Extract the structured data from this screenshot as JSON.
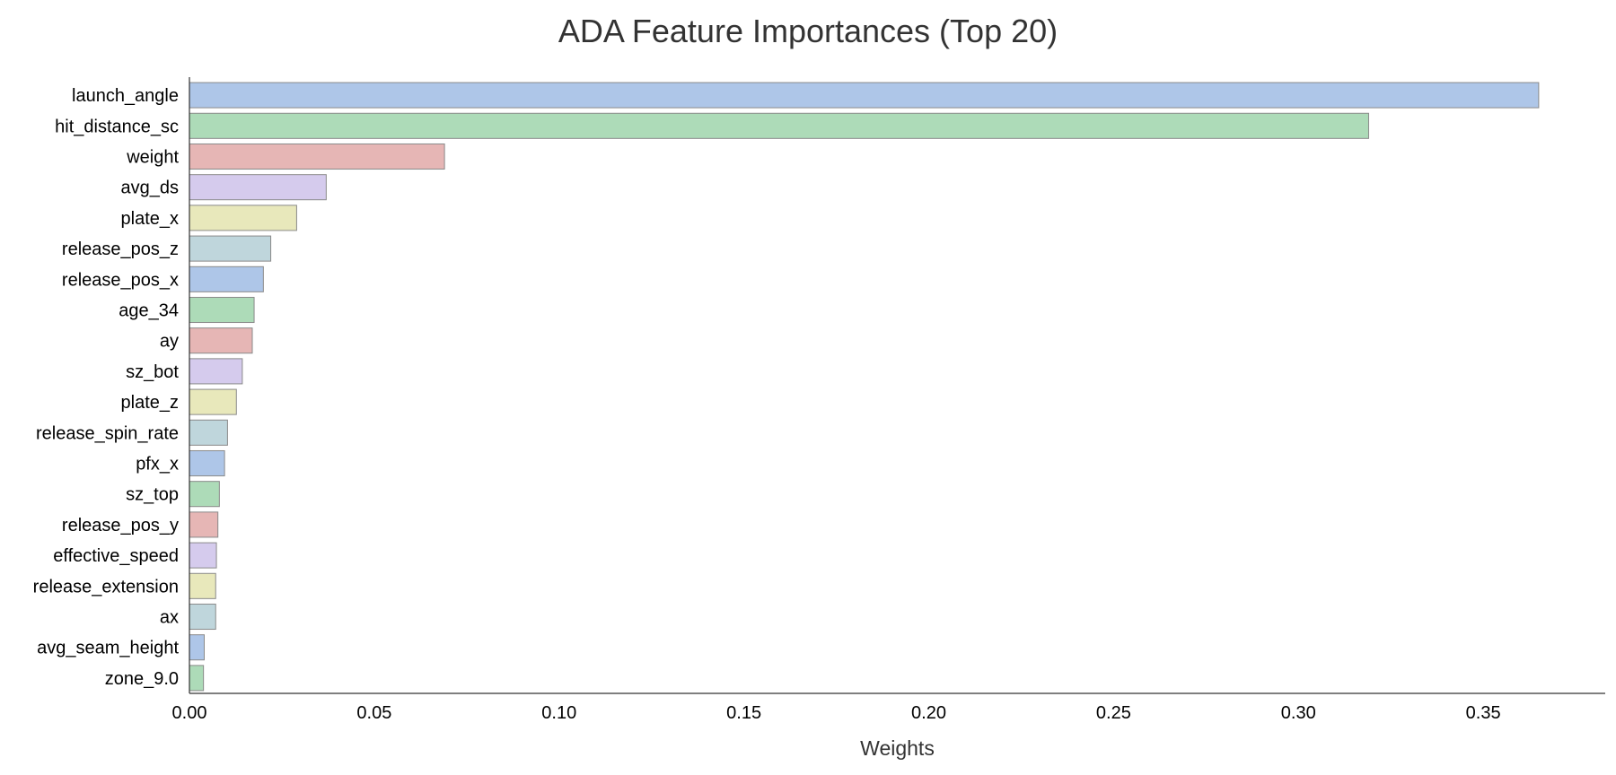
{
  "chart_data": {
    "type": "bar",
    "orientation": "horizontal",
    "title": "ADA Feature Importances (Top 20)",
    "xlabel": "Weights",
    "ylabel": "",
    "xlim": [
      0,
      0.383
    ],
    "xticks": [
      "0.00",
      "0.05",
      "0.10",
      "0.15",
      "0.20",
      "0.25",
      "0.30",
      "0.35"
    ],
    "grid": false,
    "categories": [
      "launch_angle",
      "hit_distance_sc",
      "weight",
      "avg_ds",
      "plate_x",
      "release_pos_z",
      "release_pos_x",
      "age_34",
      "ay",
      "sz_bot",
      "plate_z",
      "release_spin_rate",
      "pfx_x",
      "sz_top",
      "release_pos_y",
      "effective_speed",
      "release_extension",
      "ax",
      "avg_seam_height",
      "zone_9.0"
    ],
    "values": [
      0.365,
      0.319,
      0.069,
      0.037,
      0.029,
      0.022,
      0.02,
      0.0175,
      0.017,
      0.0143,
      0.0127,
      0.0103,
      0.0095,
      0.0081,
      0.0077,
      0.0073,
      0.0071,
      0.0071,
      0.004,
      0.0038
    ],
    "colors": [
      "#aec6e8",
      "#addbb8",
      "#e6b6b5",
      "#d5cbed",
      "#e8e8bb",
      "#bfd6dc"
    ],
    "edge_color": "#8a8a8a"
  }
}
